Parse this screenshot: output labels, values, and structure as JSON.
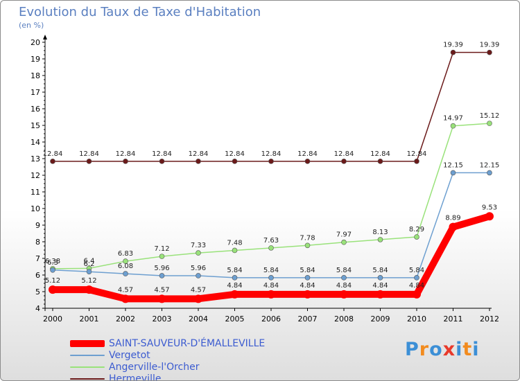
{
  "title": "Evolution du Taux de Taxe d'Habitation",
  "unit": "(en %)",
  "logo": {
    "text": "Proxiti",
    "colors": [
      "#3c8fd6",
      "#f28b1e",
      "#3c8fd6",
      "#e8392a",
      "#3c8fd6",
      "#f28b1e",
      "#3c8fd6"
    ]
  },
  "chart_data": {
    "type": "line",
    "categories": [
      "2000",
      "2001",
      "2002",
      "2003",
      "2004",
      "2005",
      "2006",
      "2007",
      "2008",
      "2009",
      "2010",
      "2011",
      "2012"
    ],
    "ylim": [
      4,
      20
    ],
    "yticks": [
      4,
      5,
      6,
      7,
      8,
      9,
      10,
      11,
      12,
      13,
      14,
      15,
      16,
      17,
      18,
      19,
      20
    ],
    "grid": false,
    "series": [
      {
        "name": "Hermeville",
        "color": "#6b1a1a",
        "values": [
          12.84,
          12.84,
          12.84,
          12.84,
          12.84,
          12.84,
          12.84,
          12.84,
          12.84,
          12.84,
          12.84,
          19.39,
          19.39
        ],
        "labels": [
          "12.84",
          "12.84",
          "12.84",
          "12.84",
          "12.84",
          "12.84",
          "12.84",
          "12.84",
          "12.84",
          "12.84",
          "12.84",
          "19.39",
          "19.39"
        ]
      },
      {
        "name": "Angerville-l'Orcher",
        "color": "#99e27a",
        "values": [
          6.38,
          6.4,
          6.83,
          7.12,
          7.33,
          7.48,
          7.63,
          7.78,
          7.97,
          8.13,
          8.29,
          14.97,
          15.12
        ],
        "labels": [
          "6.38",
          "6.4",
          "6.83",
          "7.12",
          "7.33",
          "7.48",
          "7.63",
          "7.78",
          "7.97",
          "8.13",
          "8.29",
          "14.97",
          "15.12"
        ]
      },
      {
        "name": "Vergetot",
        "color": "#6d9fd0",
        "values": [
          6.3,
          6.2,
          6.08,
          5.96,
          5.96,
          5.84,
          5.84,
          5.84,
          5.84,
          5.84,
          5.84,
          12.15,
          12.15
        ],
        "labels": [
          "6.3",
          "6.2",
          "6.08",
          "5.96",
          "5.96",
          "5.84",
          "5.84",
          "5.84",
          "5.84",
          "5.84",
          "5.84",
          "12.15",
          "12.15"
        ]
      },
      {
        "name": "SAINT-SAUVEUR-D'ÉMALLEVILLE",
        "color": "#ff0000",
        "values": [
          5.12,
          5.12,
          4.57,
          4.57,
          4.57,
          4.84,
          4.84,
          4.84,
          4.84,
          4.84,
          4.84,
          8.89,
          9.53
        ],
        "labels": [
          "5.12",
          "5.12",
          "4.57",
          "4.57",
          "4.57",
          "4.84",
          "4.84",
          "4.84",
          "4.84",
          "4.84",
          "4.84",
          "8.89",
          "9.53"
        ]
      }
    ],
    "legend": [
      {
        "name": "SAINT-SAUVEUR-D'ÉMALLEVILLE",
        "color": "#ff0000",
        "weight": "thick"
      },
      {
        "name": "Vergetot",
        "color": "#6d9fd0",
        "weight": "thin"
      },
      {
        "name": "Angerville-l'Orcher",
        "color": "#99e27a",
        "weight": "thin"
      },
      {
        "name": "Hermeville",
        "color": "#6b1a1a",
        "weight": "thin"
      }
    ]
  }
}
